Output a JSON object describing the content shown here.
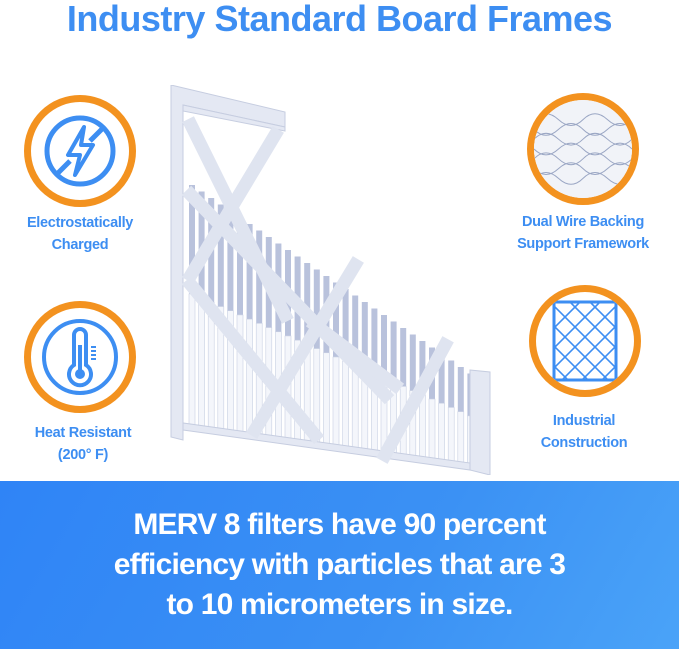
{
  "title": "Industry Standard Board Frames",
  "features": [
    {
      "line1": "Electrostatically",
      "line2": "Charged",
      "icon": "no-electricity-icon"
    },
    {
      "line1": "Dual Wire Backing",
      "line2": "Support Framework",
      "icon": "wire-mesh-closeup-icon"
    },
    {
      "line1": "Heat Resistant",
      "line2": "(200° F)",
      "icon": "thermometer-icon"
    },
    {
      "line1": "Industrial",
      "line2": "Construction",
      "icon": "lattice-grid-icon"
    }
  ],
  "banner": {
    "line1": "MERV 8 filters have 90 percent",
    "line2": "efficiency with particles that are 3",
    "line3": "to 10 micrometers in size."
  },
  "colors": {
    "accent_blue": "#3d8ef2",
    "ring_orange": "#f3921f",
    "banner_blue": "#2f84f6"
  }
}
